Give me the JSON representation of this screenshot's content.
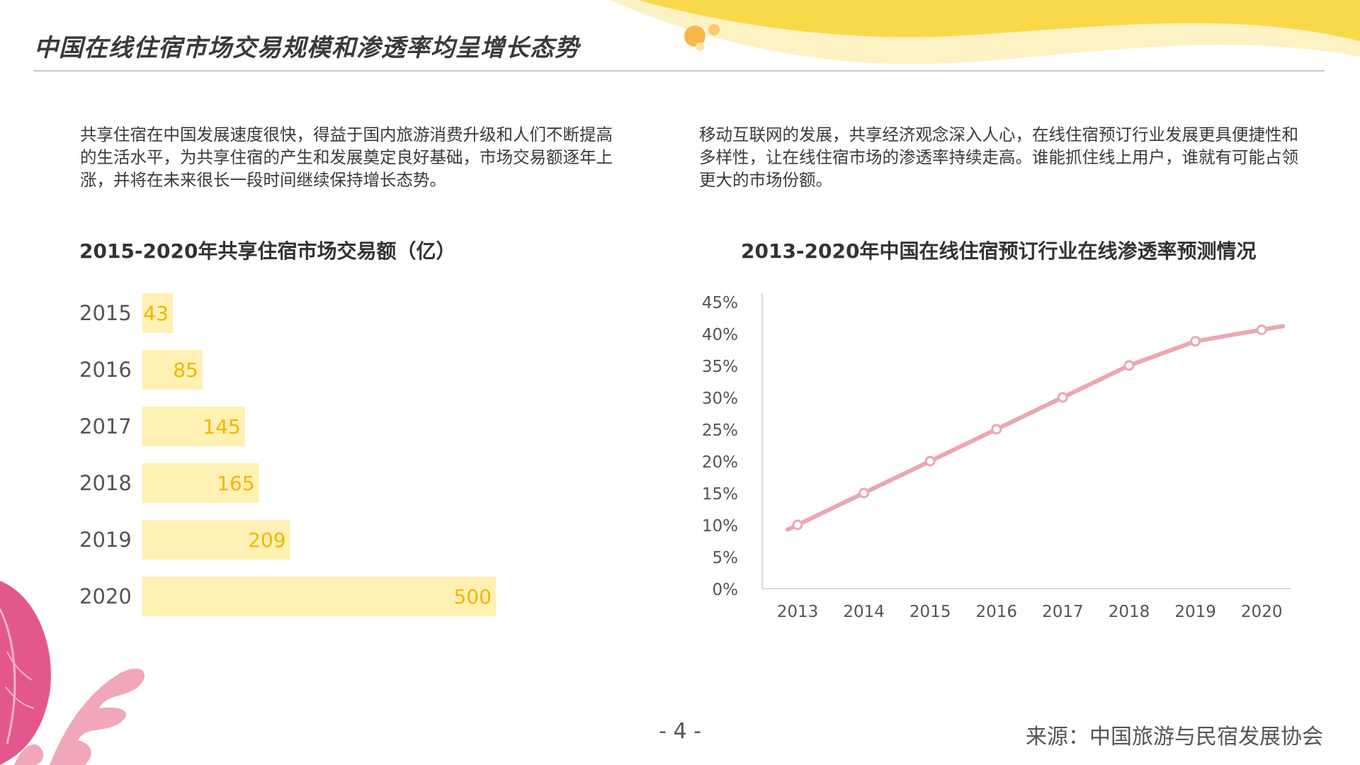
{
  "page": {
    "title": "中国在线住宿市场交易规模和渗透率均呈增长态势",
    "page_number": "- 4 -",
    "source": "来源：中国旅游与民宿发展协会"
  },
  "paragraphs": {
    "left": "共享住宿在中国发展速度很快，得益于国内旅游消费升级和人们不断提高的生活水平，为共享住宿的产生和发展奠定良好基础，市场交易额逐年上涨，并将在未来很长一段时间继续保持增长态势。",
    "right": "移动互联网的发展，共享经济观念深入人心，在线住宿预订行业发展更具便捷性和多样性，让在线住宿市场的渗透率持续走高。谁能抓住线上用户，谁就有可能占领更大的市场份额。"
  },
  "colors": {
    "bar_fill": "#fff0b3",
    "bar_label": "#f2b600",
    "line": "#eaa7b3",
    "accent_yellow": "#f9d94a",
    "accent_orange": "#f7b84b",
    "leaf_pink": "#e4578d"
  },
  "icons": {
    "top_decoration": "yellow-wave-decoration",
    "bottom_decoration": "pink-leaf-decoration"
  },
  "chart_data": [
    {
      "type": "bar",
      "orientation": "horizontal",
      "title": "2015-2020年共享住宿市场交易额（亿）",
      "categories": [
        "2015",
        "2016",
        "2017",
        "2018",
        "2019",
        "2020"
      ],
      "values": [
        43,
        85,
        145,
        165,
        209,
        500
      ],
      "data_labels": true,
      "grid": false
    },
    {
      "type": "line",
      "title": "2013-2020年中国在线住宿预订行业在线渗透率预测情况",
      "x": [
        "2013",
        "2014",
        "2015",
        "2016",
        "2017",
        "2018",
        "2019",
        "2020"
      ],
      "series": [
        {
          "values": [
            10,
            15,
            20,
            25,
            30,
            35,
            38.8,
            40.6
          ]
        }
      ],
      "y_ticks": [
        "0%",
        "5%",
        "10%",
        "15%",
        "20%",
        "25%",
        "30%",
        "35%",
        "40%",
        "45%"
      ],
      "ylim": [
        0,
        45
      ],
      "grid": false
    }
  ]
}
